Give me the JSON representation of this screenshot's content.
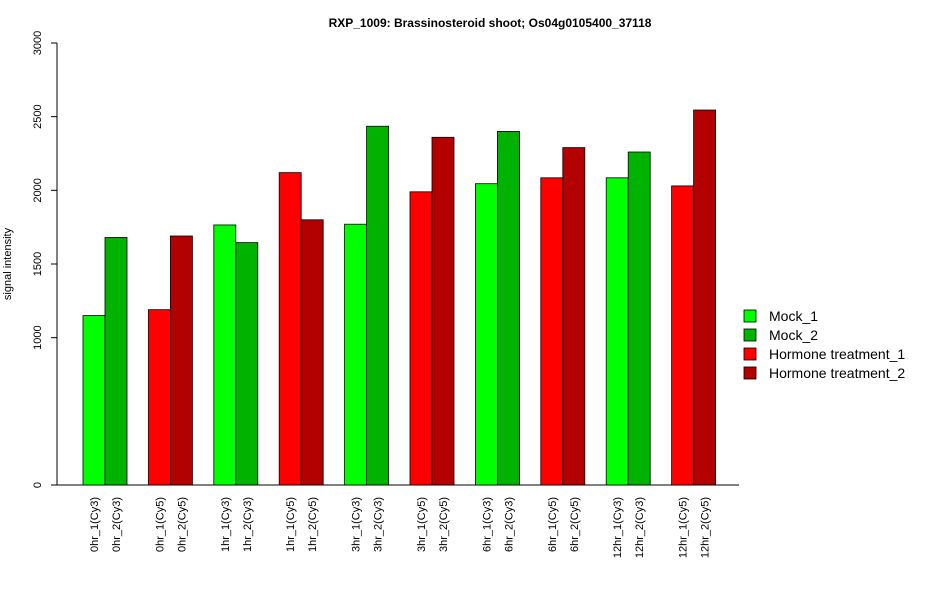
{
  "chart_data": {
    "type": "bar",
    "title": "RXP_1009: Brassinosteroid shoot; Os04g0105400_37118",
    "xlabel": "",
    "ylabel": "signal intensity",
    "ylim": [
      0,
      3000
    ],
    "yticks": [
      0,
      1000,
      1500,
      2000,
      2500,
      3000
    ],
    "grid": false,
    "legend_position": "right",
    "colors": {
      "Mock_1": "#00ff00",
      "Mock_2": "#00b300",
      "Hormone treatment_1": "#ff0000",
      "Hormone treatment_2": "#b30000"
    },
    "series": [
      {
        "name": "Mock_1",
        "color": "#00ff00"
      },
      {
        "name": "Mock_2",
        "color": "#00b300"
      },
      {
        "name": "Hormone treatment_1",
        "color": "#ff0000"
      },
      {
        "name": "Hormone treatment_2",
        "color": "#b30000"
      }
    ],
    "bars": [
      {
        "label": "0hr_1(Cy3)",
        "value": 1150,
        "series": "Mock_1"
      },
      {
        "label": "0hr_2(Cy3)",
        "value": 1680,
        "series": "Mock_2"
      },
      {
        "label": "0hr_1(Cy5)",
        "value": 1190,
        "series": "Hormone treatment_1"
      },
      {
        "label": "0hr_2(Cy5)",
        "value": 1690,
        "series": "Hormone treatment_2"
      },
      {
        "label": "1hr_1(Cy3)",
        "value": 1765,
        "series": "Mock_1"
      },
      {
        "label": "1hr_2(Cy3)",
        "value": 1645,
        "series": "Mock_2"
      },
      {
        "label": "1hr_1(Cy5)",
        "value": 2120,
        "series": "Hormone treatment_1"
      },
      {
        "label": "1hr_2(Cy5)",
        "value": 1800,
        "series": "Hormone treatment_2"
      },
      {
        "label": "3hr_1(Cy3)",
        "value": 1770,
        "series": "Mock_1"
      },
      {
        "label": "3hr_2(Cy3)",
        "value": 2435,
        "series": "Mock_2"
      },
      {
        "label": "3hr_1(Cy5)",
        "value": 1990,
        "series": "Hormone treatment_1"
      },
      {
        "label": "3hr_2(Cy5)",
        "value": 2360,
        "series": "Hormone treatment_2"
      },
      {
        "label": "6hr_1(Cy3)",
        "value": 2045,
        "series": "Mock_1"
      },
      {
        "label": "6hr_2(Cy3)",
        "value": 2400,
        "series": "Mock_2"
      },
      {
        "label": "6hr_1(Cy5)",
        "value": 2085,
        "series": "Hormone treatment_1"
      },
      {
        "label": "6hr_2(Cy5)",
        "value": 2290,
        "series": "Hormone treatment_2"
      },
      {
        "label": "12hr_1(Cy3)",
        "value": 2085,
        "series": "Mock_1"
      },
      {
        "label": "12hr_2(Cy3)",
        "value": 2260,
        "series": "Mock_2"
      },
      {
        "label": "12hr_1(Cy5)",
        "value": 2030,
        "series": "Hormone treatment_1"
      },
      {
        "label": "12hr_2(Cy5)",
        "value": 2545,
        "series": "Hormone treatment_2"
      }
    ]
  }
}
